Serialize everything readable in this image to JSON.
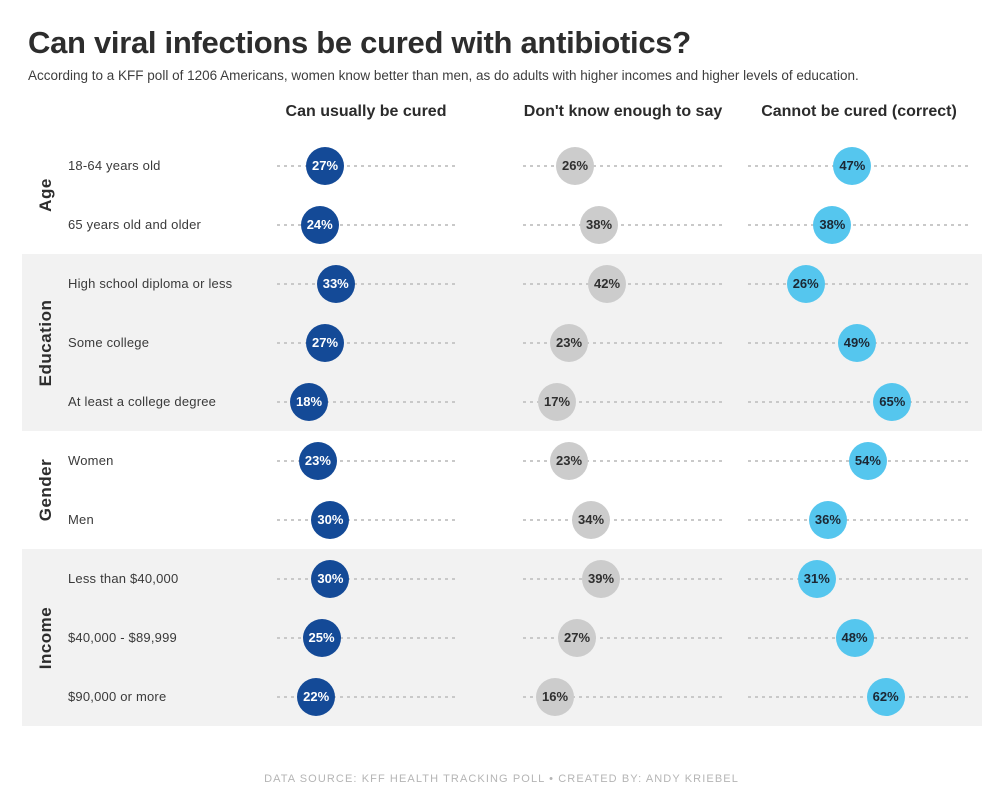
{
  "title": "Can viral infections be cured with antibiotics?",
  "subtitle": "According to a KFF poll of 1206 Americans, women know better than men, as do adults with higher incomes and higher levels of education.",
  "columns": [
    {
      "label": "Can usually be cured",
      "color": "#144a97",
      "text_color": "#ffffff"
    },
    {
      "label": "Don't know enough to say",
      "color": "#cccccc",
      "text_color": "#2f2f2f"
    },
    {
      "label": "Cannot be cured (correct)",
      "color": "#55c6ee",
      "text_color": "#1c2733"
    }
  ],
  "colors": {
    "dark_blue": "#144a97",
    "gray": "#cccccc",
    "light_blue": "#55c6ee",
    "shaded_band": "#f2f2f2",
    "dashed_line": "#c9c9c9",
    "footer_text": "#b5b5b5"
  },
  "groups": [
    {
      "label": "Age",
      "shaded": false,
      "rows": [
        {
          "label": "18-64 years old",
          "dots": [
            {
              "pct": 27,
              "label": "27%"
            },
            {
              "pct": 26,
              "label": "26%"
            },
            {
              "pct": 47,
              "label": "47%"
            }
          ]
        },
        {
          "label": "65 years old and older",
          "dots": [
            {
              "pct": 24,
              "label": "24%"
            },
            {
              "pct": 38,
              "label": "38%"
            },
            {
              "pct": 38,
              "label": "38%"
            }
          ]
        }
      ]
    },
    {
      "label": "Education",
      "shaded": true,
      "rows": [
        {
          "label": "High school diploma or less",
          "dots": [
            {
              "pct": 33,
              "label": "33%"
            },
            {
              "pct": 42,
              "label": "42%"
            },
            {
              "pct": 26,
              "label": "26%"
            }
          ]
        },
        {
          "label": "Some college",
          "dots": [
            {
              "pct": 27,
              "label": "27%"
            },
            {
              "pct": 23,
              "label": "23%"
            },
            {
              "pct": 49,
              "label": "49%"
            }
          ]
        },
        {
          "label": "At least a college degree",
          "dots": [
            {
              "pct": 18,
              "label": "18%"
            },
            {
              "pct": 17,
              "label": "17%"
            },
            {
              "pct": 65,
              "label": "65%"
            }
          ]
        }
      ]
    },
    {
      "label": "Gender",
      "shaded": false,
      "rows": [
        {
          "label": "Women",
          "dots": [
            {
              "pct": 23,
              "label": "23%"
            },
            {
              "pct": 23,
              "label": "23%"
            },
            {
              "pct": 54,
              "label": "54%"
            }
          ]
        },
        {
          "label": "Men",
          "dots": [
            {
              "pct": 30,
              "label": "30%"
            },
            {
              "pct": 34,
              "label": "34%"
            },
            {
              "pct": 36,
              "label": "36%"
            }
          ]
        }
      ]
    },
    {
      "label": "Income",
      "shaded": true,
      "rows": [
        {
          "label": "Less than $40,000",
          "dots": [
            {
              "pct": 30,
              "label": "30%"
            },
            {
              "pct": 39,
              "label": "39%"
            },
            {
              "pct": 31,
              "label": "31%"
            }
          ]
        },
        {
          "label": "$40,000 - $89,999",
          "dots": [
            {
              "pct": 25,
              "label": "25%"
            },
            {
              "pct": 27,
              "label": "27%"
            },
            {
              "pct": 48,
              "label": "48%"
            }
          ]
        },
        {
          "label": "$90,000 or more",
          "dots": [
            {
              "pct": 22,
              "label": "22%"
            },
            {
              "pct": 16,
              "label": "16%"
            },
            {
              "pct": 62,
              "label": "62%"
            }
          ]
        }
      ]
    }
  ],
  "footer": "DATA SOURCE: KFF HEALTH TRACKING POLL  •  CREATED BY: ANDY KRIEBEL",
  "chart_data": {
    "type": "scatter",
    "variant": "dot_plot",
    "title": "Can viral infections be cured with antibiotics?",
    "unit": "percent",
    "x_domain": [
      0,
      100
    ],
    "grid": "dashed horizontal guide per row, no axis ticks shown",
    "legend_position": "column headers across top",
    "column_series": [
      "Can usually be cured",
      "Don't know enough to say",
      "Cannot be cured (correct)"
    ],
    "rows": [
      {
        "group": "Age",
        "category": "18-64 years old",
        "values": [
          27,
          26,
          47
        ]
      },
      {
        "group": "Age",
        "category": "65 years old and older",
        "values": [
          24,
          38,
          38
        ]
      },
      {
        "group": "Education",
        "category": "High school diploma or less",
        "values": [
          33,
          42,
          26
        ]
      },
      {
        "group": "Education",
        "category": "Some college",
        "values": [
          27,
          23,
          49
        ]
      },
      {
        "group": "Education",
        "category": "At least a college degree",
        "values": [
          18,
          17,
          65
        ]
      },
      {
        "group": "Gender",
        "category": "Women",
        "values": [
          23,
          23,
          54
        ]
      },
      {
        "group": "Gender",
        "category": "Men",
        "values": [
          30,
          34,
          36
        ]
      },
      {
        "group": "Income",
        "category": "Less than $40,000",
        "values": [
          30,
          39,
          31
        ]
      },
      {
        "group": "Income",
        "category": "$40,000 - $89,999",
        "values": [
          25,
          27,
          48
        ]
      },
      {
        "group": "Income",
        "category": "$90,000 or more",
        "values": [
          22,
          16,
          62
        ]
      }
    ]
  }
}
